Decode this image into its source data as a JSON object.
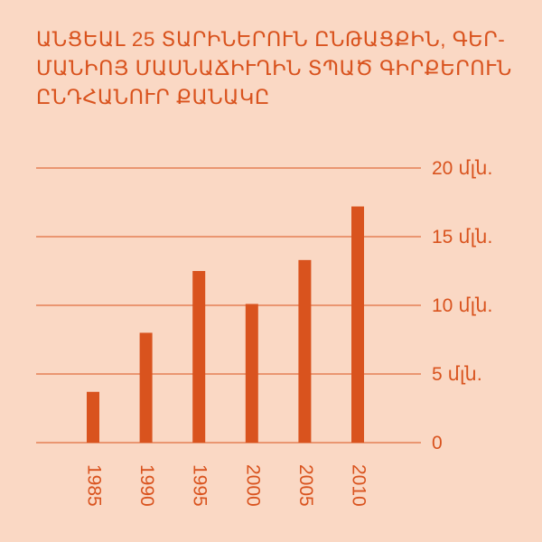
{
  "chart_data": {
    "type": "bar",
    "title_lines": [
      "ԱՆՑԵԱԼ 25 ՏԱՐԻՆԵՐՈՒՆ ԸՆԹԱՑՔԻՆ, ԳԵՐ-",
      "ՄԱՆԻՈՅ ՄԱՍՆԱՃԻՒՂԻՆ ՏՊԱԾ ԳԻՐՔԵՐՈՒՆ",
      "ԸՆԴՀԱՆՈՒՐ ՔԱՆԱԿԸ"
    ],
    "categories": [
      "1985",
      "1990",
      "1995",
      "2000",
      "2005",
      "2010"
    ],
    "values": [
      3.7,
      8.0,
      12.5,
      10.1,
      13.3,
      17.2
    ],
    "ylim": [
      0,
      20
    ],
    "y_ticks": [
      {
        "value": 0,
        "label": "0"
      },
      {
        "value": 5,
        "label": "5 մլն."
      },
      {
        "value": 10,
        "label": "10 մլն."
      },
      {
        "value": 15,
        "label": "15 մլն."
      },
      {
        "value": 20,
        "label": "20 մլն."
      }
    ],
    "grid": true,
    "xlabel": "",
    "ylabel": ""
  },
  "colors": {
    "background": "#fad8c4",
    "accent": "#d9531e",
    "bar": "#d9531e",
    "gridline": "#d9531e"
  }
}
